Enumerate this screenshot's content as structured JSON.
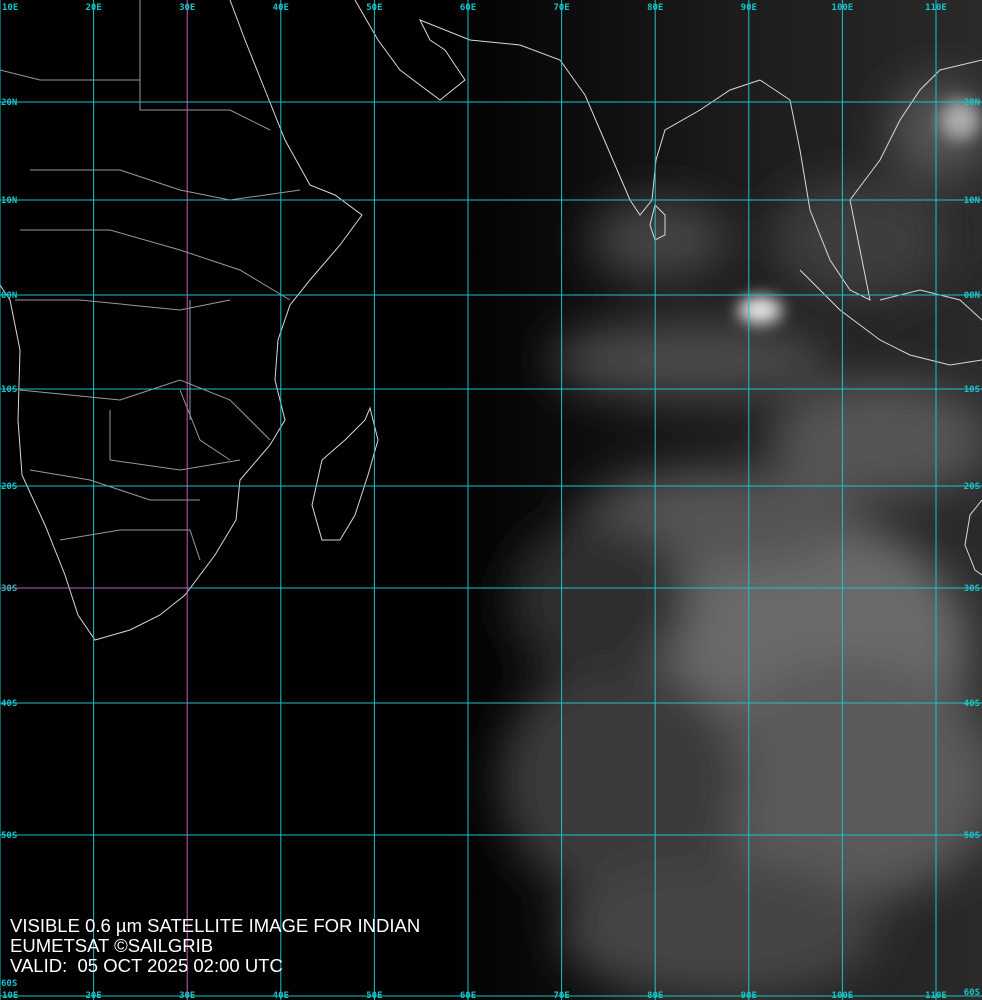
{
  "caption": {
    "line1": "VISIBLE 0.6 µm SATELLITE IMAGE FOR INDIAN",
    "line2": "EUMETSAT ©SAILGRIB",
    "line3": "VALID:  05 OCT 2025 02:00 UTC"
  },
  "grid": {
    "longitudes": [
      "10E",
      "20E",
      "30E",
      "40E",
      "50E",
      "60E",
      "70E",
      "80E",
      "90E",
      "100E",
      "110E"
    ],
    "latitudes": [
      "20N",
      "10N",
      "00N",
      "10S",
      "20S",
      "30S",
      "40S",
      "50S",
      "60S"
    ],
    "grid_color": "#19c3c8",
    "label_color": "#19c3c8",
    "highlight_color": "#c060b0",
    "coastline_color": "#d8d8d8"
  }
}
